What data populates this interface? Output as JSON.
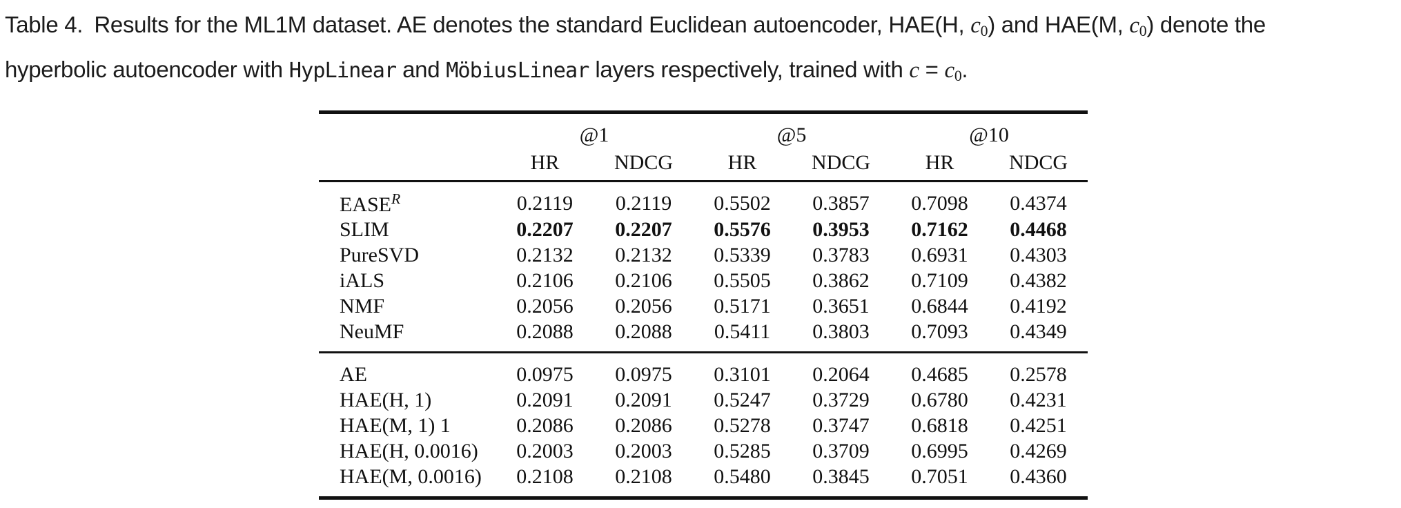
{
  "page": {
    "background": "#ffffff",
    "text_color": "#1b1b1b",
    "rule_color": "#111111"
  },
  "caption": {
    "lines": [
      [
        {
          "text": "Table 4. Results for the ML1M dataset. AE denotes the standard Euclidean autoencoder, HAE(H, "
        },
        {
          "text": "c",
          "style": "italic"
        },
        {
          "text": "0",
          "style": "sub"
        },
        {
          "text": ") and HAE(M, "
        },
        {
          "text": "c",
          "style": "italic"
        },
        {
          "text": "0",
          "style": "sub"
        },
        {
          "text": ") denote the"
        }
      ],
      [
        {
          "text": "hyperbolic autoencoder with "
        },
        {
          "text": "HypLinear",
          "style": "mono"
        },
        {
          "text": " and "
        },
        {
          "text": "MöbiusLinear",
          "style": "mono"
        },
        {
          "text": " layers respectively, trained with "
        },
        {
          "text": "c",
          "style": "italic"
        },
        {
          "text": " = "
        },
        {
          "text": "c",
          "style": "italic"
        },
        {
          "text": "0",
          "style": "sub"
        },
        {
          "text": "."
        }
      ]
    ]
  },
  "table": {
    "group_headers": [
      {
        "label": "@1",
        "span": 2
      },
      {
        "label": "@5",
        "span": 2
      },
      {
        "label": "@10",
        "span": 2
      }
    ],
    "column_headers": [
      "HR",
      "NDCG",
      "HR",
      "NDCG",
      "HR",
      "NDCG"
    ],
    "sections": [
      {
        "rows": [
          {
            "label": "EASE",
            "label_sup": "R",
            "values": [
              "0.2119",
              "0.2119",
              "0.5502",
              "0.3857",
              "0.7098",
              "0.4374"
            ]
          },
          {
            "label": "SLIM",
            "bold_values": true,
            "values": [
              "0.2207",
              "0.2207",
              "0.5576",
              "0.3953",
              "0.7162",
              "0.4468"
            ]
          },
          {
            "label": "PureSVD",
            "values": [
              "0.2132",
              "0.2132",
              "0.5339",
              "0.3783",
              "0.6931",
              "0.4303"
            ]
          },
          {
            "label": "iALS",
            "values": [
              "0.2106",
              "0.2106",
              "0.5505",
              "0.3862",
              "0.7109",
              "0.4382"
            ]
          },
          {
            "label": "NMF",
            "values": [
              "0.2056",
              "0.2056",
              "0.5171",
              "0.3651",
              "0.6844",
              "0.4192"
            ]
          },
          {
            "label": "NeuMF",
            "values": [
              "0.2088",
              "0.2088",
              "0.5411",
              "0.3803",
              "0.7093",
              "0.4349"
            ]
          }
        ]
      },
      {
        "rows": [
          {
            "label": "AE",
            "values": [
              "0.0975",
              "0.0975",
              "0.3101",
              "0.2064",
              "0.4685",
              "0.2578"
            ]
          },
          {
            "label": "HAE(H, 1)",
            "values": [
              "0.2091",
              "0.2091",
              "0.5247",
              "0.3729",
              "0.6780",
              "0.4231"
            ]
          },
          {
            "label": "HAE(M, 1) 1",
            "values": [
              "0.2086",
              "0.2086",
              "0.5278",
              "0.3747",
              "0.6818",
              "0.4251"
            ]
          },
          {
            "label": "HAE(H, 0.0016)",
            "values": [
              "0.2003",
              "0.2003",
              "0.5285",
              "0.3709",
              "0.6995",
              "0.4269"
            ]
          },
          {
            "label": "HAE(M, 0.0016)",
            "values": [
              "0.2108",
              "0.2108",
              "0.5480",
              "0.3845",
              "0.7051",
              "0.4360"
            ]
          }
        ]
      }
    ]
  }
}
